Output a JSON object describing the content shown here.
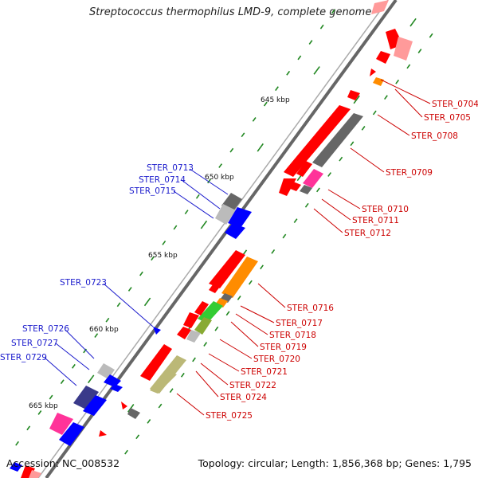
{
  "title": "Streptococcus thermophilus LMD-9, complete genome",
  "footer": {
    "accession": "Accession: NC_008532",
    "topology": "Topology: circular; Length: 1,856,368 bp; Genes: 1,795"
  },
  "colors": {
    "red": "#ff0000",
    "pink": "#ff9a9a",
    "blue": "#0000ff",
    "dark_blue": "#3a3a8a",
    "dark_gray": "#666666",
    "light_gray": "#bbbbbb",
    "orange": "#ff8c00",
    "green": "#33cc33",
    "olive": "#88aa33",
    "khaki": "#bbb877",
    "magenta": "#ff3399",
    "tick_green": "#228822",
    "right_label": "#cc0000",
    "left_label": "#1a1acc"
  },
  "scale_labels": [
    "645 kbp",
    "650 kbp",
    "655 kbp",
    "660 kbp",
    "665 kbp"
  ],
  "right_labels": [
    "STER_0704",
    "STER_0705",
    "STER_0708",
    "STER_0709",
    "STER_0710",
    "STER_0711",
    "STER_0712",
    "STER_0716",
    "STER_0717",
    "STER_0718",
    "STER_0719",
    "STER_0720",
    "STER_0721",
    "STER_0722",
    "STER_0724",
    "STER_0725"
  ],
  "left_labels": [
    "STER_0713",
    "STER_0714",
    "STER_0715",
    "STER_0723",
    "STER_0726",
    "STER_0727",
    "STER_0729"
  ]
}
